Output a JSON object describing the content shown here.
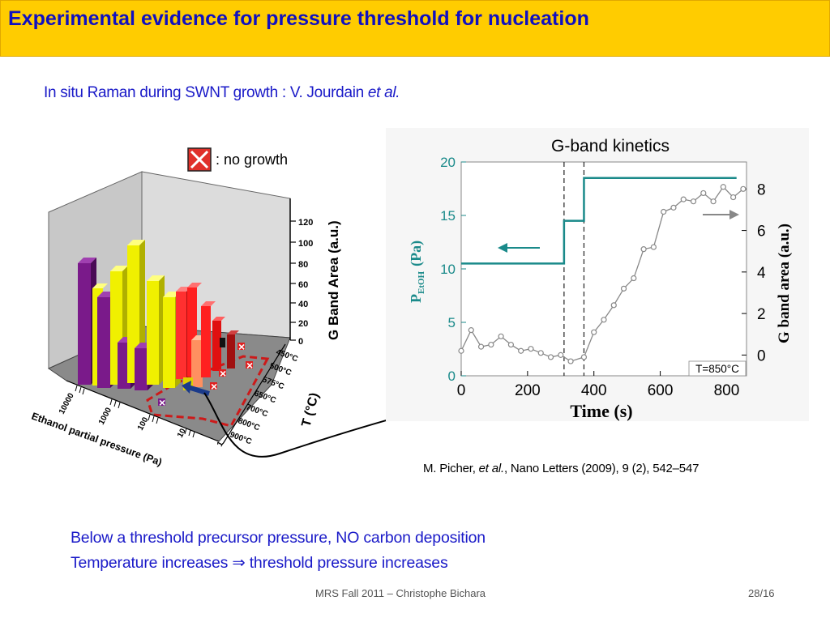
{
  "slide": {
    "title": "Experimental evidence for pressure threshold for nucleation",
    "subtitle_main": "In situ Raman during SWNT growth : V. Jourdain ",
    "subtitle_italic": "et al.",
    "citation_author": "M. Picher, ",
    "citation_italic": "et al.",
    "citation_rest": ", Nano Letters (2009), 9 (2), 542–547",
    "bullets": [
      "Below a threshold precursor pressure, NO carbon deposition",
      "Temperature increases ⇒ threshold pressure increases"
    ],
    "footer_left": "MRS Fall 2011 – Christophe Bichara",
    "footer_right": "28/16"
  },
  "figure3d": {
    "legend_label": ": no growth",
    "z_axis_label": "G Band Area (a.u.)",
    "z_ticks": [
      "0",
      "20",
      "40",
      "60",
      "80",
      "100",
      "120"
    ],
    "t_axis_label": "T (°C)",
    "t_ticks": [
      "450°C",
      "500°C",
      "575°C",
      "650°C",
      "700°C",
      "800°C",
      "900°C"
    ],
    "p_axis_label": "Ethanol partial pressure (Pa)",
    "p_ticks": [
      "10000",
      "1000",
      "100",
      "10",
      "1"
    ]
  },
  "chart_data": {
    "type": "line",
    "title": "G-band kinetics",
    "xlabel": "Time (s)",
    "ylabel_left": "P",
    "ylabel_left_sub": "EtOH",
    "ylabel_left_unit": "(Pa)",
    "ylabel_right": "G band area (a.u.)",
    "annotation": "T=850°C",
    "xlim": [
      0,
      860
    ],
    "ylim_left": [
      0,
      20
    ],
    "ylim_right": [
      -1,
      9.3
    ],
    "x_ticks": [
      0,
      200,
      400,
      600,
      800
    ],
    "y_left_ticks": [
      0,
      5,
      10,
      15,
      20
    ],
    "y_right_ticks": [
      0,
      2,
      4,
      6,
      8
    ],
    "dashed_lines_x": [
      310,
      370
    ],
    "colors": {
      "pressure": "#1a8a8a",
      "gband": "#888888",
      "axis_left": "#1a8a8a"
    },
    "series": [
      {
        "name": "P_EtOH",
        "axis": "left",
        "x": [
          0,
          310,
          310,
          370,
          370,
          830
        ],
        "y": [
          10.5,
          10.5,
          14.5,
          14.5,
          18.5,
          18.5
        ]
      },
      {
        "name": "G band area",
        "axis": "right",
        "x": [
          0,
          30,
          60,
          90,
          120,
          150,
          180,
          210,
          240,
          270,
          300,
          330,
          370,
          400,
          430,
          460,
          490,
          520,
          550,
          580,
          610,
          640,
          670,
          700,
          730,
          760,
          790,
          820,
          850
        ],
        "y": [
          0.2,
          1.2,
          0.4,
          0.5,
          0.9,
          0.5,
          0.2,
          0.3,
          0.1,
          -0.1,
          0.0,
          -0.3,
          -0.1,
          1.1,
          1.7,
          2.4,
          3.2,
          3.7,
          5.1,
          5.2,
          6.9,
          7.1,
          7.5,
          7.4,
          7.8,
          7.4,
          8.1,
          7.6,
          8.0
        ]
      }
    ]
  }
}
